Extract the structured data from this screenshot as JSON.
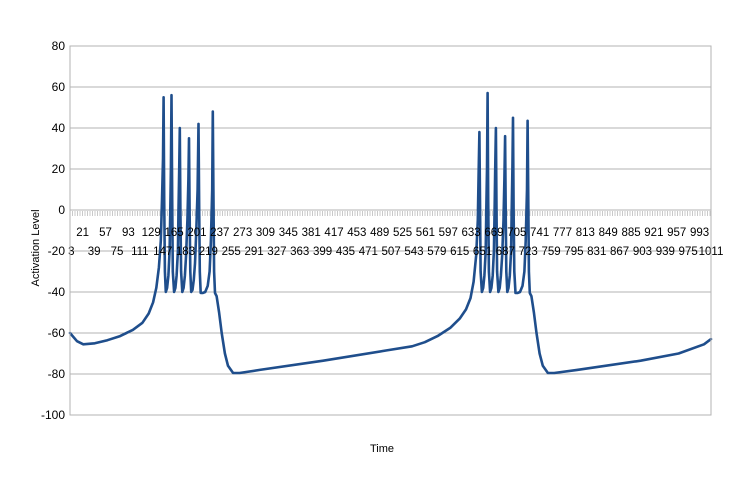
{
  "chart_data": {
    "type": "line",
    "title": "",
    "xlabel": "Time",
    "ylabel": "Activation Level",
    "ylim": [
      -100,
      80
    ],
    "yticks": [
      80,
      60,
      40,
      20,
      0,
      -20,
      -40,
      -60,
      -80,
      -100
    ],
    "xlim": [
      1,
      1011
    ],
    "x_tick_labels_upper": [
      21,
      57,
      93,
      129,
      165,
      201,
      237,
      273,
      309,
      345,
      381,
      417,
      453,
      489,
      525,
      561,
      597,
      633,
      669,
      705,
      741,
      777,
      813,
      849,
      885,
      921,
      957,
      993
    ],
    "x_tick_labels_lower": [
      3,
      39,
      75,
      111,
      147,
      183,
      219,
      255,
      291,
      327,
      363,
      399,
      435,
      471,
      507,
      543,
      579,
      615,
      651,
      687,
      723,
      759,
      795,
      831,
      867,
      903,
      939,
      975,
      1011
    ],
    "grid": "horizontal",
    "legend": "none",
    "series": [
      {
        "color": "#1f4e8c",
        "points": [
          [
            1,
            -60
          ],
          [
            12,
            -64
          ],
          [
            22,
            -65.5
          ],
          [
            40,
            -65
          ],
          [
            60,
            -63.5
          ],
          [
            80,
            -61.5
          ],
          [
            100,
            -58.5
          ],
          [
            115,
            -55
          ],
          [
            125,
            -50.5
          ],
          [
            132,
            -45
          ],
          [
            137,
            -38
          ],
          [
            141,
            -28
          ],
          [
            144,
            -15
          ],
          [
            146,
            5
          ],
          [
            147.5,
            25
          ],
          [
            148.5,
            55
          ],
          [
            149.5,
            5
          ],
          [
            150.5,
            -30
          ],
          [
            152,
            -40
          ],
          [
            154,
            -38
          ],
          [
            156,
            -32
          ],
          [
            158,
            -20
          ],
          [
            159,
            0
          ],
          [
            160,
            20
          ],
          [
            161,
            56
          ],
          [
            162,
            5
          ],
          [
            163,
            -30
          ],
          [
            165,
            -40
          ],
          [
            167,
            -38
          ],
          [
            169,
            -32
          ],
          [
            171,
            -20
          ],
          [
            172,
            0
          ],
          [
            173,
            20
          ],
          [
            174,
            40
          ],
          [
            175,
            0
          ],
          [
            176,
            -30
          ],
          [
            178,
            -40
          ],
          [
            180,
            -38
          ],
          [
            182,
            -32
          ],
          [
            184,
            -22
          ],
          [
            186,
            -5
          ],
          [
            187.5,
            15
          ],
          [
            188.5,
            35
          ],
          [
            189.5,
            0
          ],
          [
            190.5,
            -30
          ],
          [
            192,
            -40
          ],
          [
            194,
            -39
          ],
          [
            196,
            -34
          ],
          [
            198,
            -26
          ],
          [
            200,
            -10
          ],
          [
            202,
            10
          ],
          [
            203.5,
            42
          ],
          [
            204.5,
            0
          ],
          [
            205.5,
            -30
          ],
          [
            207,
            -40.5
          ],
          [
            210,
            -40.5
          ],
          [
            214,
            -40
          ],
          [
            218,
            -37
          ],
          [
            221,
            -30
          ],
          [
            223,
            -15
          ],
          [
            225,
            10
          ],
          [
            226,
            48
          ],
          [
            227,
            10
          ],
          [
            228,
            -30
          ],
          [
            229.5,
            -40.5
          ],
          [
            232,
            -42
          ],
          [
            236,
            -50
          ],
          [
            240,
            -60
          ],
          [
            245,
            -70
          ],
          [
            250,
            -76
          ],
          [
            258,
            -79.5
          ],
          [
            268,
            -79.5
          ],
          [
            300,
            -78
          ],
          [
            400,
            -73.5
          ],
          [
            500,
            -68.5
          ],
          [
            540,
            -66.5
          ],
          [
            560,
            -64.5
          ],
          [
            580,
            -61.5
          ],
          [
            600,
            -57.5
          ],
          [
            615,
            -53
          ],
          [
            625,
            -48.5
          ],
          [
            632,
            -43
          ],
          [
            637,
            -35
          ],
          [
            641,
            -22
          ],
          [
            643.5,
            -5
          ],
          [
            645,
            20
          ],
          [
            646,
            38
          ],
          [
            647,
            5
          ],
          [
            648,
            -30
          ],
          [
            650,
            -40
          ],
          [
            652,
            -38
          ],
          [
            654,
            -32
          ],
          [
            656,
            -20
          ],
          [
            657,
            0
          ],
          [
            658,
            20
          ],
          [
            659,
            57
          ],
          [
            660,
            5
          ],
          [
            661,
            -30
          ],
          [
            663,
            -40
          ],
          [
            665,
            -38
          ],
          [
            667,
            -32
          ],
          [
            669,
            -20
          ],
          [
            670,
            0
          ],
          [
            671,
            20
          ],
          [
            672,
            40
          ],
          [
            673,
            0
          ],
          [
            674,
            -30
          ],
          [
            676,
            -40
          ],
          [
            678,
            -38
          ],
          [
            680,
            -32
          ],
          [
            682,
            -22
          ],
          [
            684,
            -5
          ],
          [
            685.5,
            15
          ],
          [
            686.5,
            36
          ],
          [
            687.5,
            0
          ],
          [
            688.5,
            -30
          ],
          [
            690,
            -40
          ],
          [
            692,
            -38
          ],
          [
            694,
            -32
          ],
          [
            696,
            -20
          ],
          [
            697,
            0
          ],
          [
            698,
            20
          ],
          [
            699,
            45
          ],
          [
            700,
            0
          ],
          [
            701,
            -30
          ],
          [
            703,
            -40.5
          ],
          [
            706,
            -40.5
          ],
          [
            710,
            -40
          ],
          [
            714,
            -37
          ],
          [
            717,
            -30
          ],
          [
            719,
            -15
          ],
          [
            721,
            10
          ],
          [
            722,
            43.5
          ],
          [
            723,
            10
          ],
          [
            724,
            -30
          ],
          [
            725.5,
            -40.5
          ],
          [
            728,
            -42
          ],
          [
            732,
            -50
          ],
          [
            736,
            -60
          ],
          [
            741,
            -70
          ],
          [
            746,
            -76
          ],
          [
            754,
            -79.5
          ],
          [
            764,
            -79.5
          ],
          [
            800,
            -78
          ],
          [
            900,
            -73.5
          ],
          [
            960,
            -70
          ],
          [
            1000,
            -65.5
          ],
          [
            1011,
            -63
          ]
        ]
      }
    ]
  }
}
